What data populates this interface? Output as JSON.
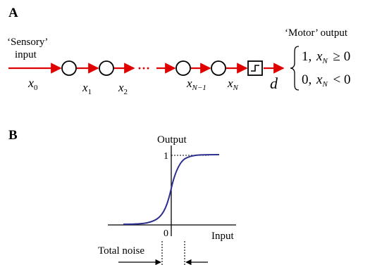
{
  "panel_a": {
    "label": "A",
    "sensory_label_1": "‘Sensory’",
    "sensory_label_2": "input",
    "motor_label": "‘Motor’ output",
    "dots": "···",
    "variables": {
      "x0": {
        "base": "x",
        "sub": "0"
      },
      "x1": {
        "base": "x",
        "sub": "1"
      },
      "x2": {
        "base": "x",
        "sub": "2"
      },
      "xN1": {
        "base": "x",
        "sub": "N−1"
      },
      "xN": {
        "base": "x",
        "sub": "N"
      }
    },
    "decision_var": "d",
    "piecewise": {
      "case1_value": "1,",
      "case1_var": "x",
      "case1_sub": "N",
      "case1_rel": "≥ 0",
      "case2_value": "0,",
      "case2_var": "x",
      "case2_sub": "N",
      "case2_rel": "< 0"
    },
    "arrow_color": "#e00000"
  },
  "panel_b": {
    "label": "B",
    "y_axis_label": "Output",
    "x_axis_label": "Input",
    "y_tick": "1",
    "x_tick": "0",
    "noise_label": "Total noise",
    "curve_color": "#2b2f8f"
  }
}
